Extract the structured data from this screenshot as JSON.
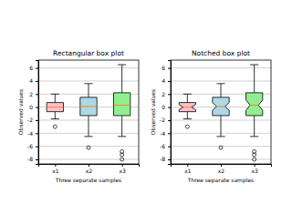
{
  "chart_data": [
    {
      "type": "box",
      "title": "Rectangular box plot",
      "x_label": "Three separate samples",
      "y_label": "Observed values",
      "categories": [
        "x1",
        "x2",
        "x3"
      ],
      "colors": [
        "pink",
        "lightblue",
        "lightgreen"
      ],
      "ylim": [
        -8.7,
        7.2
      ],
      "yticks": [
        -8,
        -6,
        -4,
        -2,
        0,
        2,
        4,
        6
      ],
      "grid": true,
      "boxes": [
        {
          "whisker_low": -1.8,
          "q1": -0.7,
          "median": 0.0,
          "q3": 0.7,
          "whisker_high": 2.0,
          "outliers": [
            -3.0
          ]
        },
        {
          "whisker_low": -4.5,
          "q1": -1.3,
          "median": 0.1,
          "q3": 1.5,
          "whisker_high": 3.6,
          "outliers": [
            -6.2
          ]
        },
        {
          "whisker_low": -4.5,
          "q1": -1.3,
          "median": 0.3,
          "q3": 2.2,
          "whisker_high": 6.5,
          "outliers": [
            -6.8,
            -7.3,
            -8.0
          ]
        }
      ]
    },
    {
      "type": "box",
      "title": "Notched box plot",
      "x_label": "Three separate samples",
      "y_label": "Observed values",
      "categories": [
        "x1",
        "x2",
        "x3"
      ],
      "colors": [
        "pink",
        "lightblue",
        "lightgreen"
      ],
      "ylim": [
        -8.7,
        7.2
      ],
      "yticks": [
        -8,
        -6,
        -4,
        -2,
        0,
        2,
        4,
        6
      ],
      "grid": true,
      "boxes": [
        {
          "whisker_low": -1.8,
          "q1": -0.7,
          "notch_low": -0.4,
          "median": 0.0,
          "notch_high": 0.4,
          "q3": 0.7,
          "whisker_high": 2.0,
          "outliers": [
            -3.0
          ]
        },
        {
          "whisker_low": -4.5,
          "q1": -1.3,
          "notch_low": -0.5,
          "median": 0.1,
          "notch_high": 0.7,
          "q3": 1.5,
          "whisker_high": 3.6,
          "outliers": [
            -6.2
          ]
        },
        {
          "whisker_low": -4.5,
          "q1": -1.3,
          "notch_low": -0.5,
          "median": 0.3,
          "notch_high": 1.1,
          "q3": 2.2,
          "whisker_high": 6.5,
          "outliers": [
            -6.8,
            -7.3,
            -8.0
          ]
        }
      ]
    }
  ]
}
